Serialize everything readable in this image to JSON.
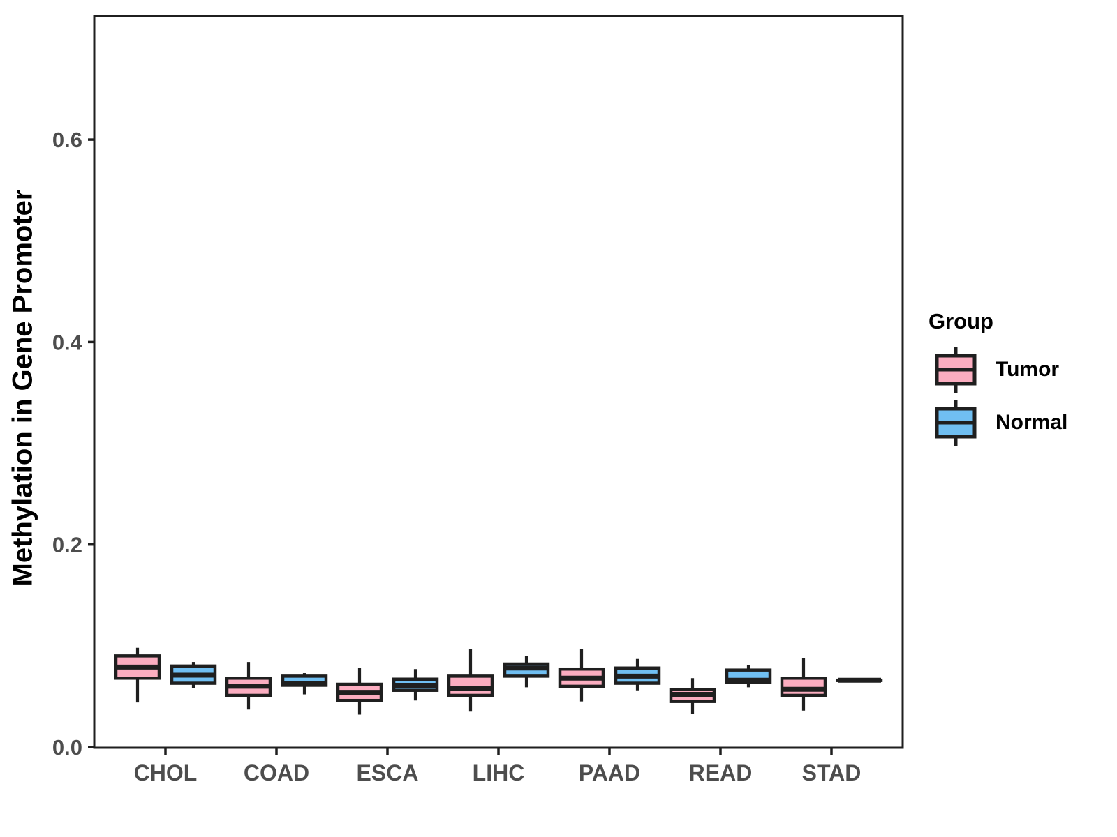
{
  "figure": {
    "y_axis_title": "Methylation in Gene Promoter",
    "legend": {
      "title": "Group",
      "entries": [
        {
          "label": "Tumor",
          "color": "#FBADC0"
        },
        {
          "label": "Normal",
          "color": "#70BFF2"
        }
      ]
    }
  },
  "chart_data": {
    "type": "boxplot",
    "title": "",
    "xlabel": "",
    "ylabel": "Methylation in Gene Promoter",
    "categories": [
      "CHOL",
      "COAD",
      "ESCA",
      "LIHC",
      "PAAD",
      "READ",
      "STAD"
    ],
    "yticks": {
      "values": [
        0.0,
        0.2,
        0.4,
        0.6
      ],
      "labels": [
        "0.0",
        "0.2",
        "0.4",
        "0.6"
      ]
    },
    "ylim": [
      0.0,
      0.722
    ],
    "grid": false,
    "legend_position": "right",
    "legend_title": "Group",
    "groups": [
      "Tumor",
      "Normal"
    ],
    "series": [
      {
        "name": "Tumor",
        "fill": "#FBADC0",
        "boxes": [
          {
            "category": "CHOL",
            "low": 0.044,
            "q1": 0.068,
            "median": 0.079,
            "q3": 0.09,
            "high": 0.098
          },
          {
            "category": "COAD",
            "low": 0.037,
            "q1": 0.051,
            "median": 0.06,
            "q3": 0.068,
            "high": 0.084
          },
          {
            "category": "ESCA",
            "low": 0.032,
            "q1": 0.046,
            "median": 0.054,
            "q3": 0.062,
            "high": 0.078
          },
          {
            "category": "LIHC",
            "low": 0.035,
            "q1": 0.051,
            "median": 0.058,
            "q3": 0.07,
            "high": 0.097
          },
          {
            "category": "PAAD",
            "low": 0.045,
            "q1": 0.06,
            "median": 0.068,
            "q3": 0.077,
            "high": 0.097
          },
          {
            "category": "READ",
            "low": 0.033,
            "q1": 0.045,
            "median": 0.052,
            "q3": 0.057,
            "high": 0.068
          },
          {
            "category": "STAD",
            "low": 0.036,
            "q1": 0.051,
            "median": 0.057,
            "q3": 0.068,
            "high": 0.088
          }
        ]
      },
      {
        "name": "Normal",
        "fill": "#70BFF2",
        "boxes": [
          {
            "category": "CHOL",
            "low": 0.058,
            "q1": 0.063,
            "median": 0.071,
            "q3": 0.08,
            "high": 0.084
          },
          {
            "category": "COAD",
            "low": 0.052,
            "q1": 0.061,
            "median": 0.063,
            "q3": 0.07,
            "high": 0.073
          },
          {
            "category": "ESCA",
            "low": 0.046,
            "q1": 0.056,
            "median": 0.061,
            "q3": 0.067,
            "high": 0.077
          },
          {
            "category": "LIHC",
            "low": 0.059,
            "q1": 0.07,
            "median": 0.078,
            "q3": 0.082,
            "high": 0.09
          },
          {
            "category": "PAAD",
            "low": 0.056,
            "q1": 0.063,
            "median": 0.07,
            "q3": 0.078,
            "high": 0.087
          },
          {
            "category": "READ",
            "low": 0.059,
            "q1": 0.064,
            "median": 0.066,
            "q3": 0.076,
            "high": 0.081
          },
          {
            "category": "STAD",
            "low": 0.066,
            "q1": 0.066,
            "median": 0.066,
            "q3": 0.066,
            "high": 0.066
          }
        ]
      }
    ],
    "style": {
      "stroke_color": "#1F1F1F",
      "tick_text_color": "#4D4D4D",
      "title_color": "#000000",
      "background": "#FFFFFF"
    }
  }
}
